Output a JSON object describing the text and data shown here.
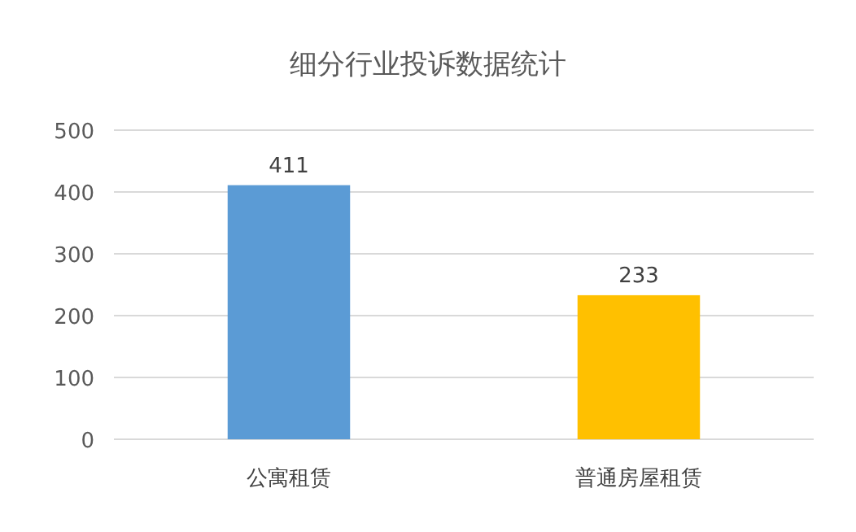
{
  "chart_data": {
    "type": "bar",
    "title": "细分行业投诉数据统计",
    "categories": [
      "公寓租赁",
      "普通房屋租赁"
    ],
    "values": [
      411,
      233
    ],
    "colors": [
      "#5b9bd5",
      "#ffc000"
    ],
    "ylim": [
      0,
      500
    ],
    "yticks": [
      0,
      100,
      200,
      300,
      400,
      500
    ],
    "grid": "y",
    "data_labels": true
  }
}
